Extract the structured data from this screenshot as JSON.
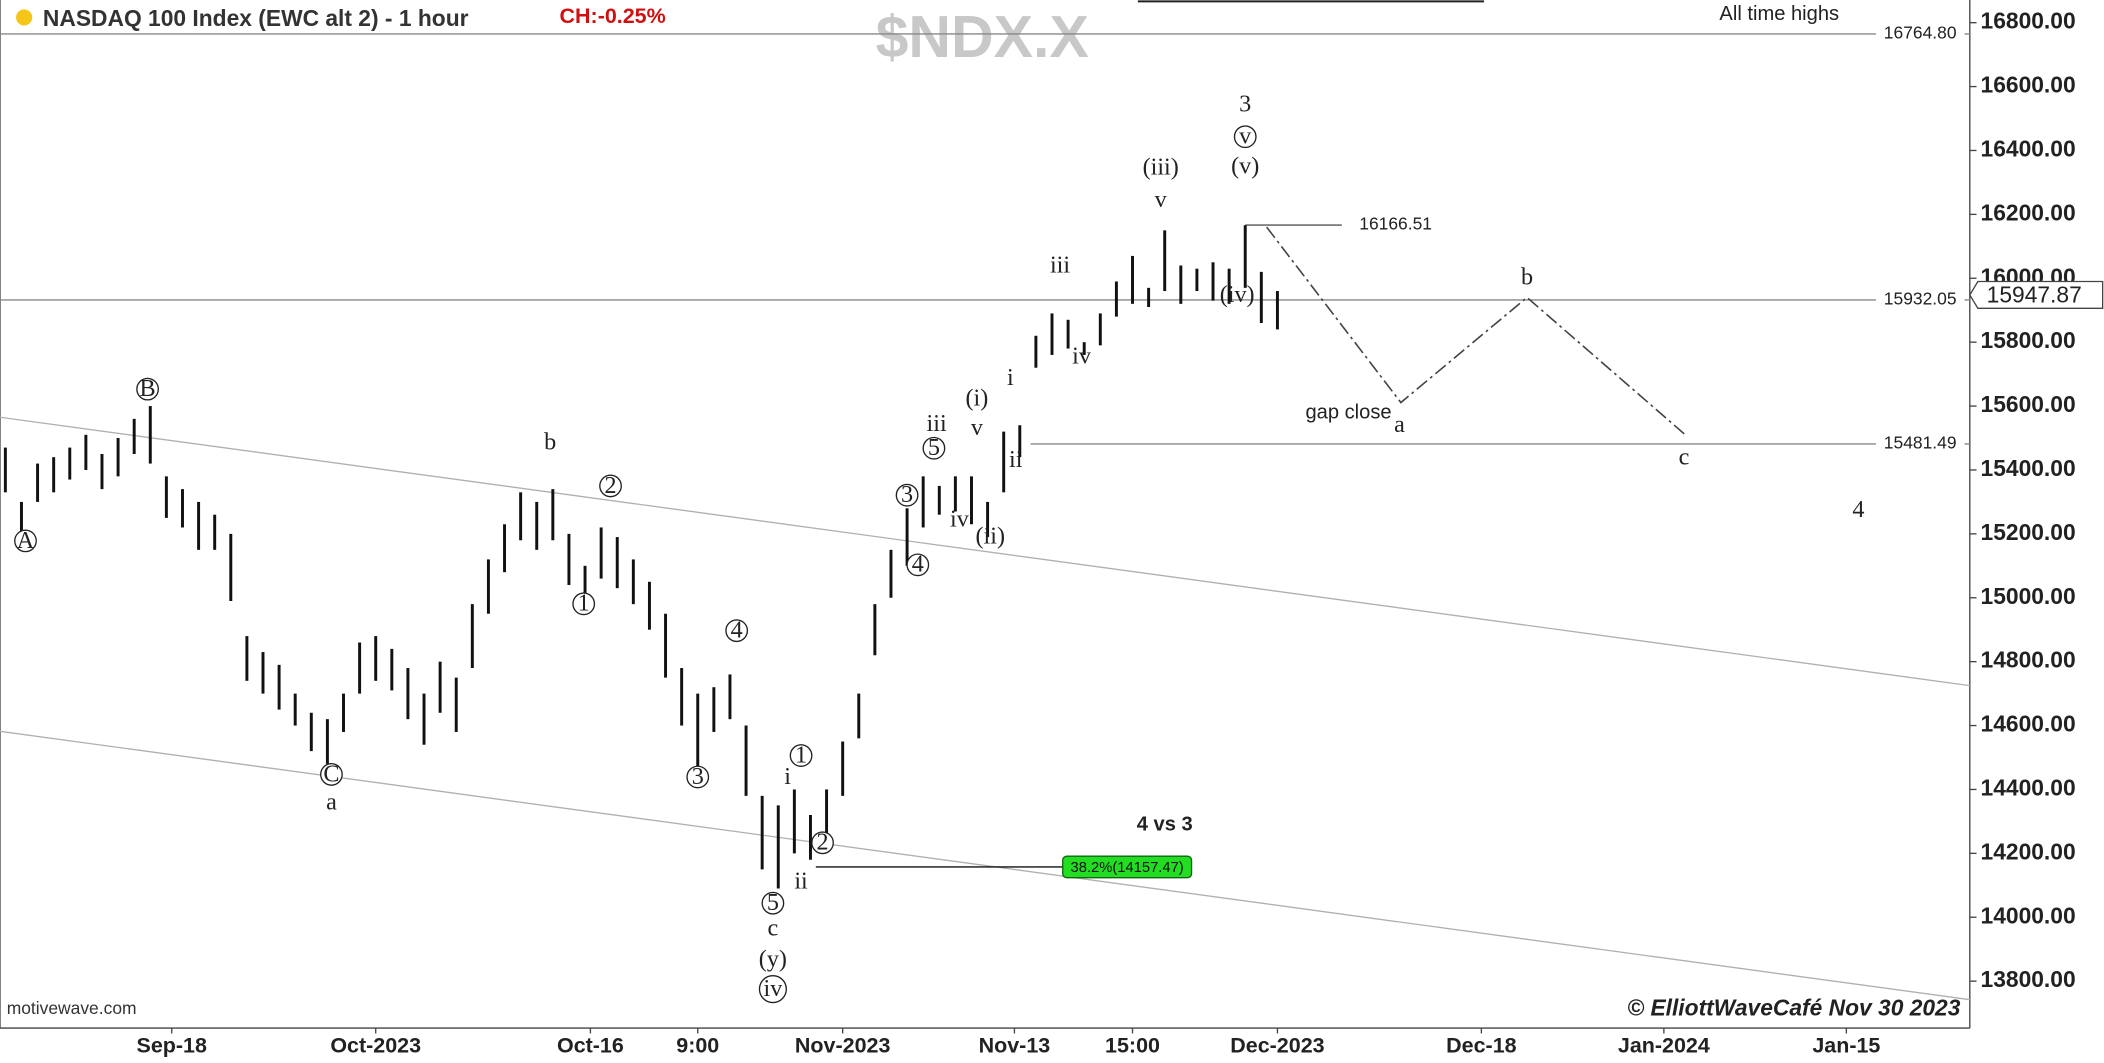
{
  "chart_data": {
    "type": "ohlc",
    "title": "NASDAQ 100 Index (EWC alt 2) - 1 hour",
    "change": "CH:-0.25%",
    "symbol": "$NDX.X",
    "source": "motivewave.com",
    "credit": "© ElliottWaveCafé Nov 30 2023",
    "color": "#111111",
    "x": [
      1,
      4,
      7,
      10,
      13,
      16,
      19,
      22,
      25,
      28,
      31,
      34,
      37,
      40,
      43,
      46,
      49,
      52,
      55,
      58,
      61,
      64,
      67,
      70,
      73,
      76,
      79,
      82,
      85,
      88,
      91,
      94,
      97,
      100,
      103,
      106,
      109,
      112,
      115,
      118,
      121,
      124,
      127,
      130,
      133,
      136,
      139,
      142,
      145,
      148,
      151,
      154,
      157,
      160,
      163,
      166,
      169,
      172,
      175,
      178,
      181,
      184,
      187,
      190,
      193,
      196,
      199,
      202,
      205,
      208,
      211,
      214,
      217,
      220,
      223,
      226,
      229,
      232,
      235,
      238
    ],
    "high": [
      15470,
      15300,
      15420,
      15440,
      15470,
      15510,
      15450,
      15500,
      15560,
      15600,
      15380,
      15340,
      15300,
      15260,
      15200,
      14880,
      14830,
      14790,
      14700,
      14640,
      14620,
      14700,
      14860,
      14880,
      14840,
      14780,
      14700,
      14800,
      14750,
      14980,
      15120,
      15230,
      15330,
      15300,
      15340,
      15200,
      15100,
      15220,
      15190,
      15120,
      15050,
      14950,
      14780,
      14700,
      14720,
      14760,
      14600,
      14380,
      14350,
      14400,
      14320,
      14400,
      14550,
      14700,
      14980,
      15150,
      15280,
      15380,
      15350,
      15380,
      15380,
      15300,
      15520,
      15540,
      15820,
      15890,
      15870,
      15800,
      15890,
      15990,
      16070,
      15970,
      16150,
      16040,
      16030,
      16050,
      16030,
      16166,
      16020,
      15960
    ],
    "low": [
      15330,
      15200,
      15300,
      15330,
      15370,
      15400,
      15340,
      15380,
      15450,
      15420,
      15250,
      15220,
      15150,
      15150,
      14990,
      14740,
      14700,
      14650,
      14600,
      14520,
      14480,
      14580,
      14700,
      14740,
      14710,
      14620,
      14540,
      14640,
      14580,
      14780,
      14950,
      15080,
      15180,
      15150,
      15180,
      15040,
      14970,
      15060,
      15030,
      14980,
      14900,
      14750,
      14600,
      14450,
      14580,
      14620,
      14380,
      14150,
      14090,
      14200,
      14180,
      14250,
      14380,
      14560,
      14820,
      15000,
      15100,
      15220,
      15260,
      15270,
      15230,
      15190,
      15330,
      15440,
      15720,
      15760,
      15780,
      15760,
      15790,
      15880,
      15920,
      15910,
      15960,
      15920,
      15960,
      15930,
      15920,
      15970,
      15860,
      15840
    ],
    "xlim": [
      0,
      367
    ],
    "ylim": [
      13653,
      16871
    ],
    "xticks": [
      {
        "value": 32,
        "label": "Sep-18"
      },
      {
        "value": 70,
        "label": "Oct-2023"
      },
      {
        "value": 110,
        "label": "Oct-16"
      },
      {
        "value": 130,
        "label": "9:00"
      },
      {
        "value": 157,
        "label": "Nov-2023"
      },
      {
        "value": 189,
        "label": "Nov-13"
      },
      {
        "value": 211,
        "label": "15:00"
      },
      {
        "value": 238,
        "label": "Dec-2023"
      },
      {
        "value": 276,
        "label": "Dec-18"
      },
      {
        "value": 310,
        "label": "Jan-2024"
      },
      {
        "value": 344,
        "label": "Jan-15"
      }
    ],
    "yticks": [
      {
        "value": 13800,
        "label": "13800.00"
      },
      {
        "value": 14000,
        "label": "14000.00"
      },
      {
        "value": 14200,
        "label": "14200.00"
      },
      {
        "value": 14400,
        "label": "14400.00"
      },
      {
        "value": 14600,
        "label": "14600.00"
      },
      {
        "value": 14800,
        "label": "14800.00"
      },
      {
        "value": 15000,
        "label": "15000.00"
      },
      {
        "value": 15200,
        "label": "15200.00"
      },
      {
        "value": 15400,
        "label": "15400.00"
      },
      {
        "value": 15600,
        "label": "15600.00"
      },
      {
        "value": 15800,
        "label": "15800.00"
      },
      {
        "value": 16000,
        "label": "16000.00"
      },
      {
        "value": 16200,
        "label": "16200.00"
      },
      {
        "value": 16400,
        "label": "16400.00"
      },
      {
        "value": 16600,
        "label": "16600.00"
      },
      {
        "value": 16800,
        "label": "16800.00"
      }
    ],
    "levels": [
      {
        "value": 16764.8,
        "label": "16764.80",
        "x_from": 0
      },
      {
        "value": 15932.05,
        "x_from": 0
      },
      {
        "value": 15481.49,
        "x_from": 192
      }
    ],
    "last": 15947.87,
    "peak": {
      "value": 16166.51,
      "x": [
        232,
        250
      ]
    },
    "fib": {
      "value": 14157.47,
      "label": "38.2%(14157.47)",
      "x": [
        152,
        198,
        222
      ]
    },
    "channel": [
      {
        "x": [
          0,
          367
        ],
        "y": [
          15565,
          14725
        ]
      },
      {
        "x": [
          0,
          367
        ],
        "y": [
          14582,
          13742
        ]
      }
    ],
    "projection": {
      "x": [
        236,
        261,
        284.5,
        314
      ],
      "y": [
        16160,
        15611,
        15940,
        15510
      ]
    },
    "annotations": [
      {
        "text": "A",
        "x": 4.75,
        "y": 15178,
        "circled": true
      },
      {
        "text": "B",
        "x": 27.5,
        "y": 15653,
        "circled": true
      },
      {
        "text": "C",
        "x": 61.75,
        "y": 14447,
        "circled": true
      },
      {
        "text": "a",
        "x": 61.75,
        "y": 14359
      },
      {
        "text": "b",
        "x": 102.5,
        "y": 15485
      },
      {
        "text": "1",
        "x": 108.75,
        "y": 14981,
        "circled": true
      },
      {
        "text": "2",
        "x": 113.75,
        "y": 15350,
        "circled": true
      },
      {
        "text": "3",
        "x": 130,
        "y": 14439,
        "circled": true
      },
      {
        "text": "4",
        "x": 137.25,
        "y": 14897,
        "circled": true
      },
      {
        "text": "5",
        "x": 144,
        "y": 14044,
        "circled": true
      },
      {
        "text": "c",
        "x": 144,
        "y": 13964
      },
      {
        "text": "(y)",
        "x": 144,
        "y": 13868
      },
      {
        "text": "iv",
        "x": 144,
        "y": 13775,
        "circled": true
      },
      {
        "text": "i",
        "x": 146.75,
        "y": 14439
      },
      {
        "text": "1",
        "x": 149.25,
        "y": 14506,
        "circled": true
      },
      {
        "text": "2",
        "x": 153.25,
        "y": 14233,
        "circled": true
      },
      {
        "text": "ii",
        "x": 149.25,
        "y": 14111
      },
      {
        "text": "3",
        "x": 169,
        "y": 15321,
        "circled": true
      },
      {
        "text": "4",
        "x": 171,
        "y": 15103,
        "circled": true
      },
      {
        "text": "5",
        "x": 174,
        "y": 15468,
        "circled": true
      },
      {
        "text": "iii",
        "x": 174.5,
        "y": 15544
      },
      {
        "text": "iv",
        "x": 178.75,
        "y": 15245
      },
      {
        "text": "(i)",
        "x": 182,
        "y": 15624
      },
      {
        "text": "v",
        "x": 182,
        "y": 15531
      },
      {
        "text": "(ii)",
        "x": 184.5,
        "y": 15191
      },
      {
        "text": "i",
        "x": 188.25,
        "y": 15687
      },
      {
        "text": "ii",
        "x": 189.25,
        "y": 15431
      },
      {
        "text": "iii",
        "x": 197.5,
        "y": 16040
      },
      {
        "text": "iv",
        "x": 201.5,
        "y": 15754
      },
      {
        "text": "(iii)",
        "x": 216.25,
        "y": 16346
      },
      {
        "text": "v",
        "x": 216.25,
        "y": 16245
      },
      {
        "text": "(iv)",
        "x": 230.5,
        "y": 15947
      },
      {
        "text": "(v)",
        "x": 232,
        "y": 16350
      },
      {
        "text": "v",
        "x": 232,
        "y": 16443,
        "circled": true
      },
      {
        "text": "3",
        "x": 232,
        "y": 16544,
        "large": true
      },
      {
        "text": "a",
        "x": 260.75,
        "y": 15540
      },
      {
        "text": "b",
        "x": 284.5,
        "y": 16002
      },
      {
        "text": "c",
        "x": 313.75,
        "y": 15439
      },
      {
        "text": "4",
        "x": 346.25,
        "y": 15275,
        "large": true
      },
      {
        "text": "gap close",
        "x": 251.25,
        "y": 15582,
        "note": true
      },
      {
        "text": "All time highs",
        "x": 331.5,
        "y": 16830,
        "note": true
      },
      {
        "text": "4 vs 3",
        "x": 217,
        "y": 14292,
        "note": true,
        "bold": true
      }
    ]
  }
}
